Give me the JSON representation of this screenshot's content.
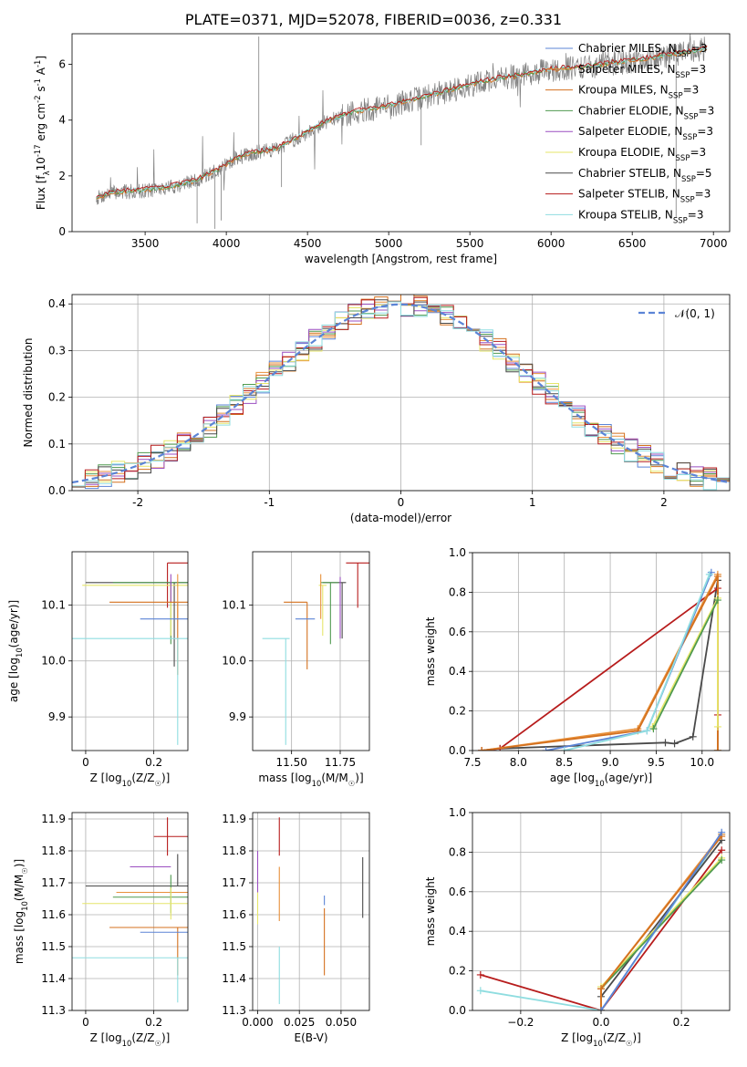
{
  "figure_title": "PLATE=0371, MJD=52078, FIBERID=0036, z=0.331",
  "colors": {
    "chabrier_miles": "#5b84d6",
    "salpeter_miles": "#e8913b",
    "kroupa_miles": "#d4711f",
    "chabrier_elodie": "#4f9a4f",
    "salpeter_elodie": "#9b4fc1",
    "kroupa_elodie": "#e6e66a",
    "chabrier_stelib": "#4a4a4a",
    "salpeter_stelib": "#b71c1c",
    "kroupa_stelib": "#8fdde0",
    "gauss": "#5b84d6",
    "spectrum": "#808080"
  },
  "chart_data": [
    {
      "id": "spectrum",
      "type": "line",
      "title": "PLATE=0371, MJD=52078, FIBERID=0036, z=0.331",
      "xlabel": "wavelength [Angstrom, rest frame]",
      "ylabel": "Flux [f$_\\lambda$10$^{-17}$ erg cm$^{-2}$ s$^{-1}$ A$^{-1}$]",
      "xlim": [
        3050,
        7100
      ],
      "ylim": [
        0,
        7.1
      ],
      "xticks": [
        3500,
        4000,
        4500,
        5000,
        5500,
        6000,
        6500,
        7000
      ],
      "yticks": [
        0,
        2,
        4,
        6
      ],
      "grid": false,
      "legend_position": "right",
      "legend": [
        {
          "label": "Chabrier MILES, N",
          "sub": "SSP",
          "suffix": "=3",
          "color_key": "chabrier_miles"
        },
        {
          "label": "Salpeter MILES, N",
          "sub": "SSP",
          "suffix": "=3",
          "color_key": "salpeter_miles"
        },
        {
          "label": "Kroupa MILES, N",
          "sub": "SSP",
          "suffix": "=3",
          "color_key": "kroupa_miles"
        },
        {
          "label": "Chabrier ELODIE, N",
          "sub": "SSP",
          "suffix": "=3",
          "color_key": "chabrier_elodie"
        },
        {
          "label": "Salpeter ELODIE, N",
          "sub": "SSP",
          "suffix": "=3",
          "color_key": "salpeter_elodie"
        },
        {
          "label": "Kroupa ELODIE, N",
          "sub": "SSP",
          "suffix": "=3",
          "color_key": "kroupa_elodie"
        },
        {
          "label": "Chabrier STELIB, N",
          "sub": "SSP",
          "suffix": "=5",
          "color_key": "chabrier_stelib"
        },
        {
          "label": "Salpeter STELIB, N",
          "sub": "SSP",
          "suffix": "=3",
          "color_key": "salpeter_stelib"
        },
        {
          "label": "Kroupa STELIB, N",
          "sub": "SSP",
          "suffix": "=3",
          "color_key": "kroupa_stelib"
        }
      ],
      "continuum_model": {
        "x": [
          3200,
          3300,
          3450,
          3600,
          3700,
          3800,
          3950,
          4050,
          4150,
          4300,
          4450,
          4600,
          4800,
          5000,
          5200,
          5400,
          5600,
          5800,
          6000,
          6200,
          6400,
          6600,
          6800,
          6950
        ],
        "y": [
          1.2,
          1.4,
          1.45,
          1.55,
          1.65,
          1.8,
          2.2,
          2.6,
          2.8,
          2.95,
          3.4,
          3.9,
          4.3,
          4.5,
          4.8,
          5.1,
          5.4,
          5.6,
          5.8,
          5.9,
          6.05,
          6.2,
          6.4,
          6.55
        ]
      },
      "spectrum_range": [
        3200,
        6960
      ],
      "model_line_keys": [
        "kroupa_miles",
        "chabrier_elodie",
        "kroupa_stelib",
        "salpeter_stelib"
      ],
      "features": [
        {
          "x": 3820,
          "y": 0.3
        },
        {
          "x": 3930,
          "y": 0.1
        },
        {
          "x": 3968,
          "y": 0.4
        },
        {
          "x": 4200,
          "y": 7.0
        },
        {
          "x": 4340,
          "y": 1.6
        },
        {
          "x": 5200,
          "y": 3.1
        },
        {
          "x": 6770,
          "y": 0.5
        }
      ]
    },
    {
      "id": "residuals",
      "type": "histogram",
      "xlabel": "(data-model)/error",
      "ylabel": "Normed distribution",
      "xlim": [
        -2.5,
        2.5
      ],
      "ylim": [
        0,
        0.42
      ],
      "xticks": [
        -2,
        -1,
        0,
        1,
        2
      ],
      "yticks": [
        0.0,
        0.1,
        0.2,
        0.3,
        0.4
      ],
      "grid": true,
      "bin_width": 0.1,
      "legend": [
        {
          "label": "𝒩(0, 1)",
          "color_key": "gauss",
          "style": "dashed"
        }
      ],
      "series_keys": [
        "chabrier_miles",
        "salpeter_miles",
        "kroupa_miles",
        "chabrier_elodie",
        "salpeter_elodie",
        "kroupa_elodie",
        "chabrier_stelib",
        "salpeter_stelib",
        "kroupa_stelib"
      ],
      "noise_amplitude": 0.025
    },
    {
      "id": "age_vs_Z",
      "type": "errorbar",
      "xlabel": "Z [log$_{10}$(Z/Z$_\\odot$)]",
      "ylabel": "age  [log$_{10}$(age/yr)]",
      "xlim": [
        -0.04,
        0.3
      ],
      "ylim": [
        9.84,
        10.195
      ],
      "xticks": [
        0.0,
        0.2
      ],
      "yticks": [
        9.9,
        10.0,
        10.1
      ],
      "grid": true,
      "points": [
        {
          "key": "salpeter_stelib",
          "x": 0.24,
          "y": 10.175,
          "xerr": [
            0.0,
            0.06
          ],
          "yerr": [
            0.08,
            0.0
          ]
        },
        {
          "key": "chabrier_stelib",
          "x": 0.26,
          "y": 10.14,
          "xerr": [
            0.26,
            0.04
          ],
          "yerr": [
            0.15,
            0.0
          ]
        },
        {
          "key": "chabrier_elodie",
          "x": 0.25,
          "y": 10.14,
          "xerr": [
            0.17,
            0.05
          ],
          "yerr": [
            0.11,
            0.0
          ]
        },
        {
          "key": "kroupa_elodie",
          "x": 0.25,
          "y": 10.135,
          "xerr": [
            0.26,
            0.05
          ],
          "yerr": [
            0.09,
            0.0
          ]
        },
        {
          "key": "salpeter_elodie",
          "x": 0.25,
          "y": 10.155,
          "xerr": [
            0.0,
            0.0
          ],
          "yerr": [
            0.05,
            0.0
          ]
        },
        {
          "key": "kroupa_miles",
          "x": 0.27,
          "y": 10.105,
          "xerr": [
            0.2,
            0.03
          ],
          "yerr": [
            0.13,
            0.0
          ]
        },
        {
          "key": "salpeter_miles",
          "x": 0.27,
          "y": 10.155,
          "xerr": [
            0.0,
            0.0
          ],
          "yerr": [
            0.08,
            0.0
          ]
        },
        {
          "key": "chabrier_miles",
          "x": 0.26,
          "y": 10.075,
          "xerr": [
            0.1,
            0.04
          ],
          "yerr": [
            0.0,
            0.0
          ]
        },
        {
          "key": "kroupa_stelib",
          "x": 0.27,
          "y": 10.04,
          "xerr": [
            0.31,
            0.03
          ],
          "yerr": [
            0.19,
            0.0
          ]
        }
      ]
    },
    {
      "id": "age_vs_mass",
      "type": "errorbar",
      "xlabel": "mass [log$_{10}$(M/M$_\\odot$)]",
      "ylabel": "",
      "xlim": [
        11.3,
        11.9
      ],
      "ylim": [
        9.84,
        10.195
      ],
      "xticks": [
        11.5,
        11.75
      ],
      "xticklabels": [
        "11.50",
        "11.75"
      ],
      "yticks": [
        9.9,
        10.0,
        10.1
      ],
      "grid": true,
      "points": [
        {
          "key": "salpeter_stelib",
          "x": 11.84,
          "y": 10.175,
          "xerr": [
            0.06,
            0.06
          ],
          "yerr": [
            0.08,
            0.0
          ]
        },
        {
          "key": "chabrier_stelib",
          "x": 11.76,
          "y": 10.14,
          "xerr": [
            0.1,
            0.02
          ],
          "yerr": [
            0.1,
            0.0
          ]
        },
        {
          "key": "chabrier_elodie",
          "x": 11.7,
          "y": 10.14,
          "xerr": [
            0.05,
            0.04
          ],
          "yerr": [
            0.11,
            0.0
          ]
        },
        {
          "key": "kroupa_elodie",
          "x": 11.66,
          "y": 10.135,
          "xerr": [
            0.02,
            0.02
          ],
          "yerr": [
            0.09,
            0.0
          ]
        },
        {
          "key": "salpeter_elodie",
          "x": 11.75,
          "y": 10.13,
          "xerr": [
            0.0,
            0.0
          ],
          "yerr": [
            0.09,
            0.02
          ]
        },
        {
          "key": "kroupa_miles",
          "x": 11.58,
          "y": 10.105,
          "xerr": [
            0.12,
            0.0
          ],
          "yerr": [
            0.12,
            0.0
          ]
        },
        {
          "key": "salpeter_miles",
          "x": 11.65,
          "y": 10.155,
          "xerr": [
            0.0,
            0.0
          ],
          "yerr": [
            0.08,
            0.0
          ]
        },
        {
          "key": "chabrier_miles",
          "x": 11.62,
          "y": 10.075,
          "xerr": [
            0.1,
            0.0
          ],
          "yerr": [
            0.0,
            0.0
          ]
        },
        {
          "key": "kroupa_stelib",
          "x": 11.47,
          "y": 10.04,
          "xerr": [
            0.12,
            0.02
          ],
          "yerr": [
            0.19,
            0.0
          ]
        }
      ]
    },
    {
      "id": "weight_vs_age",
      "type": "line",
      "xlabel": "age  [log$_{10}$(age/yr)]",
      "ylabel": "mass weight",
      "xlim": [
        7.5,
        10.3
      ],
      "ylim": [
        0,
        1.0
      ],
      "xticks": [
        7.5,
        8.0,
        8.5,
        9.0,
        9.5,
        10.0
      ],
      "xticklabels": [
        "7.5",
        "8.0",
        "8.5",
        "9.0",
        "9.5",
        "10.0"
      ],
      "yticks": [
        0.0,
        0.2,
        0.4,
        0.6,
        0.8,
        1.0
      ],
      "grid": true,
      "series": [
        {
          "key": "chabrier_stelib",
          "x": [
            7.6,
            7.8,
            9.6,
            9.7,
            9.9,
            10.17,
            10.17
          ],
          "y": [
            0.0,
            0.01,
            0.04,
            0.035,
            0.07,
            0.86,
            0.0
          ]
        },
        {
          "key": "salpeter_stelib",
          "x": [
            7.6,
            7.8,
            10.17,
            10.17
          ],
          "y": [
            0.0,
            0.01,
            0.82,
            0.18
          ]
        },
        {
          "key": "salpeter_miles",
          "x": [
            7.6,
            9.3,
            10.17,
            10.17
          ],
          "y": [
            0.0,
            0.11,
            0.89,
            0.0
          ]
        },
        {
          "key": "kroupa_miles",
          "x": [
            7.6,
            9.3,
            10.17,
            10.17
          ],
          "y": [
            0.0,
            0.1,
            0.88,
            0.0
          ]
        },
        {
          "key": "kroupa_elodie",
          "x": [
            9.46,
            10.17,
            10.17
          ],
          "y": [
            0.12,
            0.77,
            0.12
          ]
        },
        {
          "key": "chabrier_elodie",
          "x": [
            9.47,
            10.17
          ],
          "y": [
            0.11,
            0.76
          ]
        },
        {
          "key": "chabrier_miles",
          "x": [
            8.3,
            9.4,
            10.1
          ],
          "y": [
            0.0,
            0.1,
            0.9
          ]
        },
        {
          "key": "kroupa_stelib",
          "x": [
            8.5,
            9.4,
            10.08
          ],
          "y": [
            0.0,
            0.1,
            0.89
          ]
        }
      ]
    },
    {
      "id": "mass_vs_Z",
      "type": "errorbar",
      "xlabel": "Z [log$_{10}$(Z/Z$_\\odot$)]",
      "ylabel": "mass [log$_{10}$(M/M$_\\odot$)]",
      "xlim": [
        -0.04,
        0.3
      ],
      "ylim": [
        11.3,
        11.92
      ],
      "xticks": [
        0.0,
        0.2
      ],
      "yticks": [
        11.3,
        11.4,
        11.5,
        11.6,
        11.7,
        11.8,
        11.9
      ],
      "grid": true,
      "points": [
        {
          "key": "salpeter_stelib",
          "x": 0.24,
          "y": 11.845,
          "xerr": [
            0.04,
            0.06
          ],
          "yerr": [
            0.06,
            0.06
          ]
        },
        {
          "key": "salpeter_elodie",
          "x": 0.25,
          "y": 11.75,
          "xerr": [
            0.12,
            0.0
          ],
          "yerr": [
            0.0,
            0.0
          ]
        },
        {
          "key": "chabrier_stelib",
          "x": 0.27,
          "y": 11.69,
          "xerr": [
            0.27,
            0.03
          ],
          "yerr": [
            0.0,
            0.1
          ]
        },
        {
          "key": "salpeter_miles",
          "x": 0.27,
          "y": 11.67,
          "xerr": [
            0.18,
            0.03
          ],
          "yerr": [
            0.0,
            0.0
          ]
        },
        {
          "key": "chabrier_elodie",
          "x": 0.25,
          "y": 11.655,
          "xerr": [
            0.17,
            0.05
          ],
          "yerr": [
            0.05,
            0.07
          ]
        },
        {
          "key": "kroupa_elodie",
          "x": 0.25,
          "y": 11.635,
          "xerr": [
            0.26,
            0.05
          ],
          "yerr": [
            0.05,
            0.05
          ]
        },
        {
          "key": "kroupa_miles",
          "x": 0.27,
          "y": 11.56,
          "xerr": [
            0.2,
            0.03
          ],
          "yerr": [
            0.15,
            0.0
          ]
        },
        {
          "key": "chabrier_miles",
          "x": 0.26,
          "y": 11.545,
          "xerr": [
            0.1,
            0.04
          ],
          "yerr": [
            0.0,
            0.0
          ]
        },
        {
          "key": "kroupa_stelib",
          "x": 0.27,
          "y": 11.465,
          "xerr": [
            0.31,
            0.03
          ],
          "yerr": [
            0.14,
            0.0
          ]
        }
      ]
    },
    {
      "id": "mass_vs_ebv",
      "type": "errorbar",
      "xlabel": "E(B-V)",
      "ylabel": "",
      "xlim": [
        -0.003,
        0.067
      ],
      "ylim": [
        11.3,
        11.92
      ],
      "xticks": [
        0.0,
        0.025,
        0.05
      ],
      "xticklabels": [
        "0.000",
        "0.025",
        "0.050"
      ],
      "yticks": [
        11.3,
        11.4,
        11.5,
        11.6,
        11.7,
        11.8,
        11.9
      ],
      "grid": true,
      "points": [
        {
          "key": "salpeter_elodie",
          "x": 0.0,
          "y": 11.7,
          "xerr": [
            0.0,
            0.0
          ],
          "yerr": [
            0.03,
            0.1
          ]
        },
        {
          "key": "kroupa_elodie",
          "x": 0.0,
          "y": 11.62,
          "xerr": [
            0.0,
            0.0
          ],
          "yerr": [
            0.05,
            0.05
          ]
        },
        {
          "key": "salpeter_stelib",
          "x": 0.013,
          "y": 11.845,
          "xerr": [
            0.0,
            0.0
          ],
          "yerr": [
            0.06,
            0.06
          ]
        },
        {
          "key": "salpeter_miles",
          "x": 0.013,
          "y": 11.67,
          "xerr": [
            0.0,
            0.0
          ],
          "yerr": [
            0.09,
            0.08
          ]
        },
        {
          "key": "kroupa_stelib",
          "x": 0.013,
          "y": 11.41,
          "xerr": [
            0.0,
            0.0
          ],
          "yerr": [
            0.09,
            0.09
          ]
        },
        {
          "key": "chabrier_miles",
          "x": 0.04,
          "y": 11.63,
          "xerr": [
            0.0,
            0.0
          ],
          "yerr": [
            0.0,
            0.03
          ]
        },
        {
          "key": "kroupa_miles",
          "x": 0.04,
          "y": 11.52,
          "xerr": [
            0.0,
            0.0
          ],
          "yerr": [
            0.11,
            0.1
          ]
        },
        {
          "key": "chabrier_stelib",
          "x": 0.063,
          "y": 11.69,
          "xerr": [
            0.0,
            0.0
          ],
          "yerr": [
            0.1,
            0.09
          ]
        }
      ]
    },
    {
      "id": "weight_vs_Z",
      "type": "line",
      "xlabel": "Z [log$_{10}$(Z/Z$_\\odot$)]",
      "ylabel": "mass weight",
      "xlim": [
        -0.32,
        0.32
      ],
      "ylim": [
        0,
        1.0
      ],
      "xticks": [
        -0.2,
        0.0,
        0.2
      ],
      "xticklabels": [
        "−0.2",
        "0.0",
        "0.2"
      ],
      "yticks": [
        0.0,
        0.2,
        0.4,
        0.6,
        0.8,
        1.0
      ],
      "grid": true,
      "series": [
        {
          "key": "salpeter_stelib",
          "x": [
            -0.3,
            0.0,
            0.0,
            0.3
          ],
          "y": [
            0.18,
            0.0,
            0.0,
            0.81
          ]
        },
        {
          "key": "kroupa_stelib",
          "x": [
            -0.3,
            0.0,
            0.0,
            0.3
          ],
          "y": [
            0.1,
            0.0,
            0.0,
            0.89
          ]
        },
        {
          "key": "chabrier_stelib",
          "x": [
            0.0,
            0.0,
            0.3
          ],
          "y": [
            0.0,
            0.07,
            0.86
          ]
        },
        {
          "key": "kroupa_elodie",
          "x": [
            0.0,
            0.0,
            0.3
          ],
          "y": [
            0.0,
            0.12,
            0.77
          ]
        },
        {
          "key": "chabrier_elodie",
          "x": [
            0.0,
            0.0,
            0.3
          ],
          "y": [
            0.0,
            0.11,
            0.76
          ]
        },
        {
          "key": "salpeter_miles",
          "x": [
            0.0,
            0.0,
            0.3
          ],
          "y": [
            0.0,
            0.11,
            0.89
          ]
        },
        {
          "key": "kroupa_miles",
          "x": [
            0.0,
            0.0,
            0.3
          ],
          "y": [
            0.0,
            0.11,
            0.88
          ]
        },
        {
          "key": "chabrier_miles",
          "x": [
            0.0,
            0.3
          ],
          "y": [
            0.0,
            0.9
          ]
        }
      ]
    }
  ]
}
